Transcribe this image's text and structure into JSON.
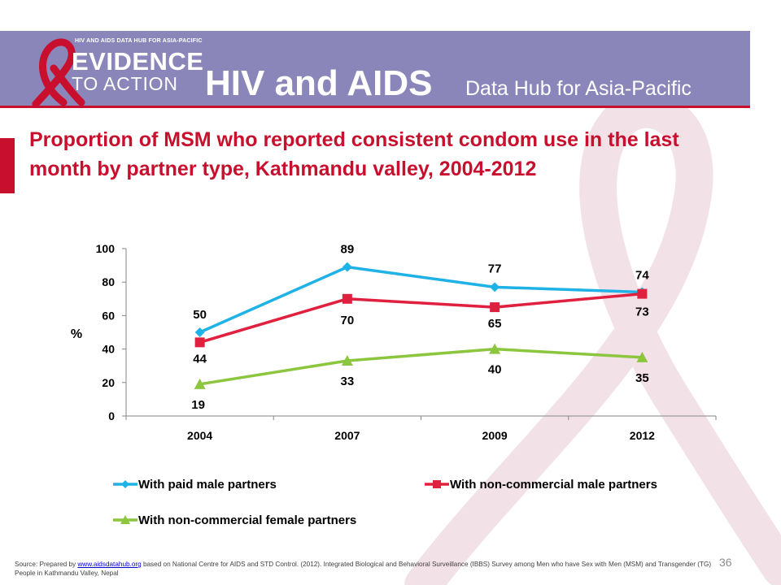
{
  "header": {
    "logo_small": "HIV AND AIDS DATA HUB FOR ASIA-PACIFIC",
    "logo_line1": "EVIDENCE",
    "logo_line2": "TO ACTION",
    "title": "HIV and AIDS",
    "subtitle": "Data Hub for Asia-Pacific"
  },
  "colors": {
    "header_band": "#8b86b9",
    "accent_red": "#c8102e",
    "series_paid": "#1fb2e6",
    "series_noncomm_male": "#e0203f",
    "series_noncomm_female": "#8cc63f"
  },
  "slide": {
    "title": "Proportion of MSM who reported consistent condom use in the last month by partner type, Kathmandu valley, 2004-2012",
    "number": "36"
  },
  "chart_data": {
    "type": "line",
    "categories": [
      "2004",
      "2007",
      "2009",
      "2012"
    ],
    "ylabel": "%",
    "ylim": [
      0,
      100
    ],
    "yticks": [
      "0",
      "20",
      "40",
      "60",
      "80",
      "100"
    ],
    "grid": false,
    "legend_position": "bottom",
    "series": [
      {
        "name": "With paid male partners",
        "values": [
          50,
          89,
          77,
          74
        ],
        "marker": "diamond",
        "color": "#1fb2e6"
      },
      {
        "name": "With non-commercial male partners",
        "values": [
          44,
          70,
          65,
          73
        ],
        "marker": "square",
        "color": "#e0203f"
      },
      {
        "name": "With non-commercial female partners",
        "values": [
          19,
          33,
          40,
          35
        ],
        "marker": "triangle",
        "color": "#8cc63f"
      }
    ]
  },
  "source": {
    "prefix": "Source: Prepared by ",
    "link": "www.aidsdatahub.org",
    "text": " based on National Centre for AIDS and STD Control. (2012). Integrated Biological and Behavioral Surveillance (IBBS) Survey among Men who have Sex with Men (MSM) and Transgender (TG) People in Kathmandu Valley, Nepal"
  }
}
